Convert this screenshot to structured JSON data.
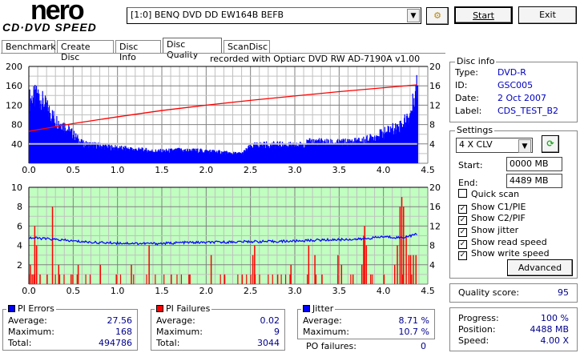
{
  "app": {
    "logo_top": "nero",
    "logo_bottom": "CD·DVD SPEED"
  },
  "toolbar": {
    "drive": "[1:0]  BENQ DVD DD EW164B BEFB",
    "start": "Start",
    "exit": "Exit"
  },
  "tabs": [
    "Benchmark",
    "Create Disc",
    "Disc Info",
    "Disc Quality",
    "ScanDisc"
  ],
  "recorded_with": "recorded with Optiarc DVD RW AD-7190A  v1.00",
  "disc_info": {
    "title": "Disc info",
    "type_label": "Type:",
    "type": "DVD-R",
    "id_label": "ID:",
    "id": "GSC005",
    "date_label": "Date:",
    "date": "2 Oct 2007",
    "label_label": "Label:",
    "label": "CDS_TEST_B2"
  },
  "settings": {
    "title": "Settings",
    "speed": "4 X CLV",
    "start_label": "Start:",
    "start": "0000 MB",
    "end_label": "End:",
    "end": "4489 MB",
    "quick_scan": "Quick scan",
    "show_c1": "Show C1/PIE",
    "show_c2": "Show C2/PIF",
    "show_jitter": "Show jitter",
    "show_read": "Show read speed",
    "show_write": "Show write speed",
    "advanced": "Advanced"
  },
  "quality": {
    "label": "Quality score:",
    "value": "95"
  },
  "progress": {
    "progress_label": "Progress:",
    "progress": "100 %",
    "position_label": "Position:",
    "position": "4488 MB",
    "speed_label": "Speed:",
    "speed": "4.00 X"
  },
  "pi_errors": {
    "title": "PI Errors",
    "avg_label": "Average:",
    "avg": "27.56",
    "max_label": "Maximum:",
    "max": "168",
    "total_label": "Total:",
    "total": "494786"
  },
  "pi_failures": {
    "title": "PI Failures",
    "avg_label": "Average:",
    "avg": "0.02",
    "max_label": "Maximum:",
    "max": "9",
    "total_label": "Total:",
    "total": "3044"
  },
  "jitter": {
    "title": "Jitter",
    "avg_label": "Average:",
    "avg": "8.71 %",
    "max_label": "Maximum:",
    "max": "10.7 %",
    "po_label": "PO failures:",
    "po": "0"
  },
  "colors": {
    "pie": "#0000ff",
    "pif": "#ff0000",
    "jitter": "#0000ff",
    "read": "#ff0000",
    "write": "#c0c0c0",
    "bottom_bg": "#c0ffc0"
  },
  "chart_data": [
    {
      "type": "bar",
      "title": "PI Errors",
      "x_ticks": [
        "0.0",
        "0.5",
        "1.0",
        "1.5",
        "2.0",
        "2.5",
        "3.0",
        "3.5",
        "4.0",
        "4.5"
      ],
      "xlim": [
        0,
        4.5
      ],
      "ylim": [
        0,
        200
      ],
      "y_ticks": [
        "200",
        "160",
        "120",
        "80",
        "40"
      ],
      "y2lim": [
        0,
        20
      ],
      "y2_ticks": [
        "20",
        "16",
        "12",
        "8",
        "4"
      ],
      "x": [
        0.0,
        0.1,
        0.2,
        0.3,
        0.4,
        0.5,
        0.6,
        0.7,
        0.8,
        0.9,
        1.0,
        1.1,
        1.2,
        1.3,
        1.4,
        1.5,
        1.6,
        1.7,
        1.8,
        1.9,
        2.0,
        2.1,
        2.2,
        2.3,
        2.4,
        2.5,
        2.6,
        2.7,
        2.8,
        2.9,
        3.0,
        3.1,
        3.2,
        3.3,
        3.4,
        3.5,
        3.6,
        3.7,
        3.8,
        3.9,
        4.0,
        4.1,
        4.2,
        4.3,
        4.38
      ],
      "pie": [
        130,
        138,
        112,
        88,
        76,
        58,
        40,
        38,
        36,
        33,
        31,
        30,
        28,
        27,
        25,
        25,
        26,
        27,
        26,
        26,
        25,
        24,
        22,
        20,
        20,
        35,
        38,
        38,
        38,
        38,
        36,
        40,
        45,
        44,
        42,
        42,
        44,
        45,
        48,
        55,
        62,
        70,
        78,
        100,
        165
      ],
      "read_speed": {
        "x": [
          0,
          0.5,
          1,
          1.5,
          2,
          2.5,
          3,
          3.5,
          4,
          4.38
        ],
        "y": [
          6.6,
          8.2,
          9.6,
          10.9,
          12,
          13,
          13.9,
          14.8,
          15.6,
          16.2
        ]
      },
      "write_speed": 4
    },
    {
      "type": "bar",
      "title": "PI Failures / Jitter",
      "x_ticks": [
        "0.0",
        "0.5",
        "1.0",
        "1.5",
        "2.0",
        "2.5",
        "3.0",
        "3.5",
        "4.0",
        "4.5"
      ],
      "xlim": [
        0,
        4.5
      ],
      "ylim": [
        0,
        10
      ],
      "y_ticks": [
        "10",
        "8",
        "6",
        "4",
        "2"
      ],
      "y2lim": [
        0,
        20
      ],
      "y2_ticks": [
        "20",
        "16",
        "12",
        "8",
        "4"
      ],
      "pif": {
        "x": [
          0.01,
          0.03,
          0.06,
          0.08,
          0.12,
          0.2,
          0.26,
          0.33,
          0.47,
          0.55,
          0.8,
          0.98,
          1.15,
          1.35,
          1.6,
          1.8,
          2.05,
          2.2,
          2.4,
          2.52,
          2.54,
          2.8,
          2.95,
          3.15,
          3.22,
          3.3,
          3.48,
          3.52,
          3.65,
          3.75,
          3.77,
          3.78,
          3.8,
          3.85,
          4.0,
          4.12,
          4.15,
          4.18,
          4.2,
          4.22,
          4.25,
          4.28,
          4.3,
          4.33,
          4.36
        ],
        "y": [
          2,
          1,
          6,
          4,
          1,
          1,
          8,
          2,
          1,
          2,
          2,
          1,
          2,
          4,
          1,
          1,
          3,
          1,
          1,
          3,
          4,
          1,
          2,
          4,
          3,
          1,
          3,
          2,
          1,
          2,
          5,
          6,
          4,
          1,
          1,
          2,
          4,
          8,
          9,
          8,
          5,
          3,
          3,
          3,
          3
        ]
      },
      "jitter": {
        "x": [
          0,
          0.25,
          0.5,
          0.75,
          1.0,
          1.25,
          1.5,
          1.75,
          2.0,
          2.25,
          2.5,
          2.75,
          3.0,
          3.25,
          3.5,
          3.75,
          4.0,
          4.2,
          4.38
        ],
        "y": [
          9.6,
          9.3,
          8.9,
          8.6,
          8.5,
          8.4,
          8.4,
          8.6,
          8.6,
          8.7,
          8.8,
          8.8,
          8.9,
          9.1,
          9.2,
          9.3,
          9.8,
          9.6,
          10.3
        ]
      }
    }
  ]
}
